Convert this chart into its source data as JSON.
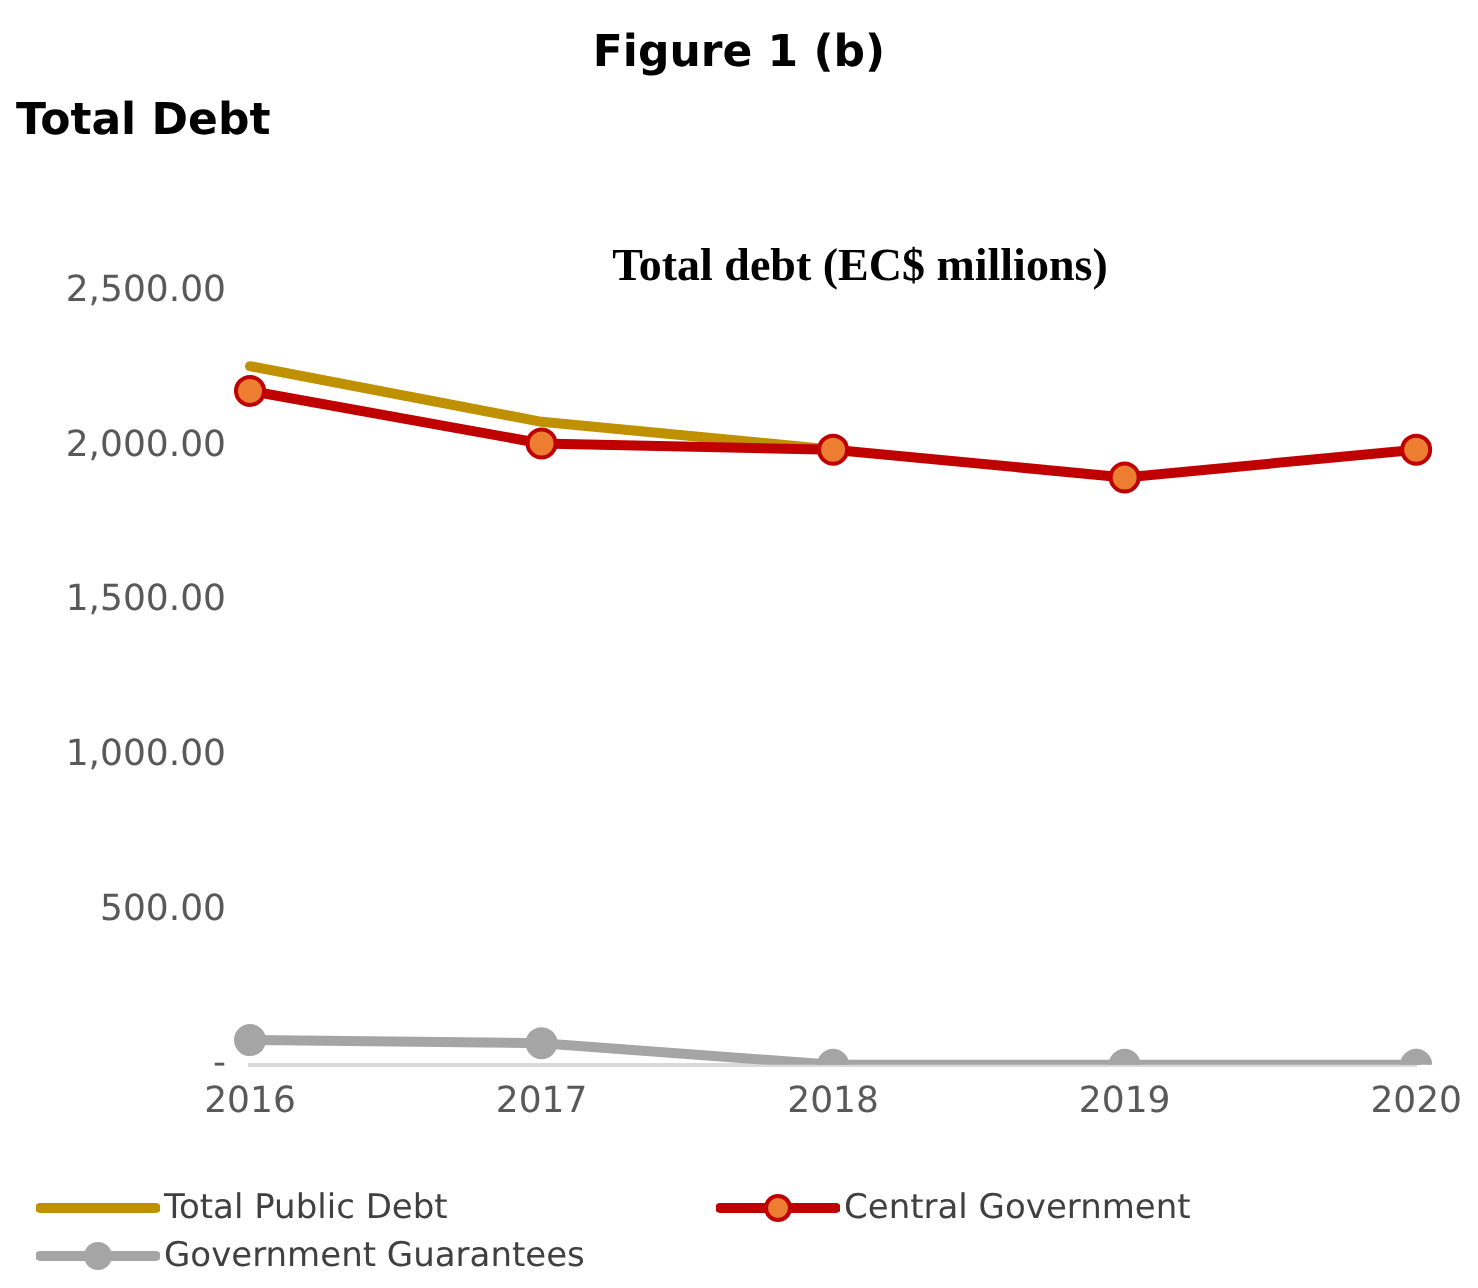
{
  "chart_data": {
    "type": "line",
    "title": "Total debt (EC$ millions)",
    "annotations": [
      "Figure 1 (b)",
      "Total Debt"
    ],
    "categories": [
      "2016",
      "2017",
      "2018",
      "2019",
      "2020"
    ],
    "series": [
      {
        "name": "Total Public Debt",
        "color": "#bf9000",
        "marker": "none",
        "values": [
          2260,
          2080,
          1990,
          null,
          null
        ]
      },
      {
        "name": "Central Government",
        "color": "#c00000",
        "marker": "circle",
        "values": [
          2180,
          2010,
          1990,
          1900,
          1990
        ]
      },
      {
        "name": "Government Guarantees",
        "color": "#a5a5a5",
        "marker": "circle",
        "values": [
          80,
          70,
          0,
          0,
          0
        ]
      }
    ],
    "ylim": [
      0,
      2500
    ],
    "yticks": [
      {
        "value": 0,
        "label": "-"
      },
      {
        "value": 500,
        "label": "500.00"
      },
      {
        "value": 1000,
        "label": "1,000.00"
      },
      {
        "value": 1500,
        "label": "1,500.00"
      },
      {
        "value": 2000,
        "label": "2,000.00"
      },
      {
        "value": 2500,
        "label": "2,500.00"
      }
    ],
    "grid": false,
    "legend": "bottom"
  }
}
